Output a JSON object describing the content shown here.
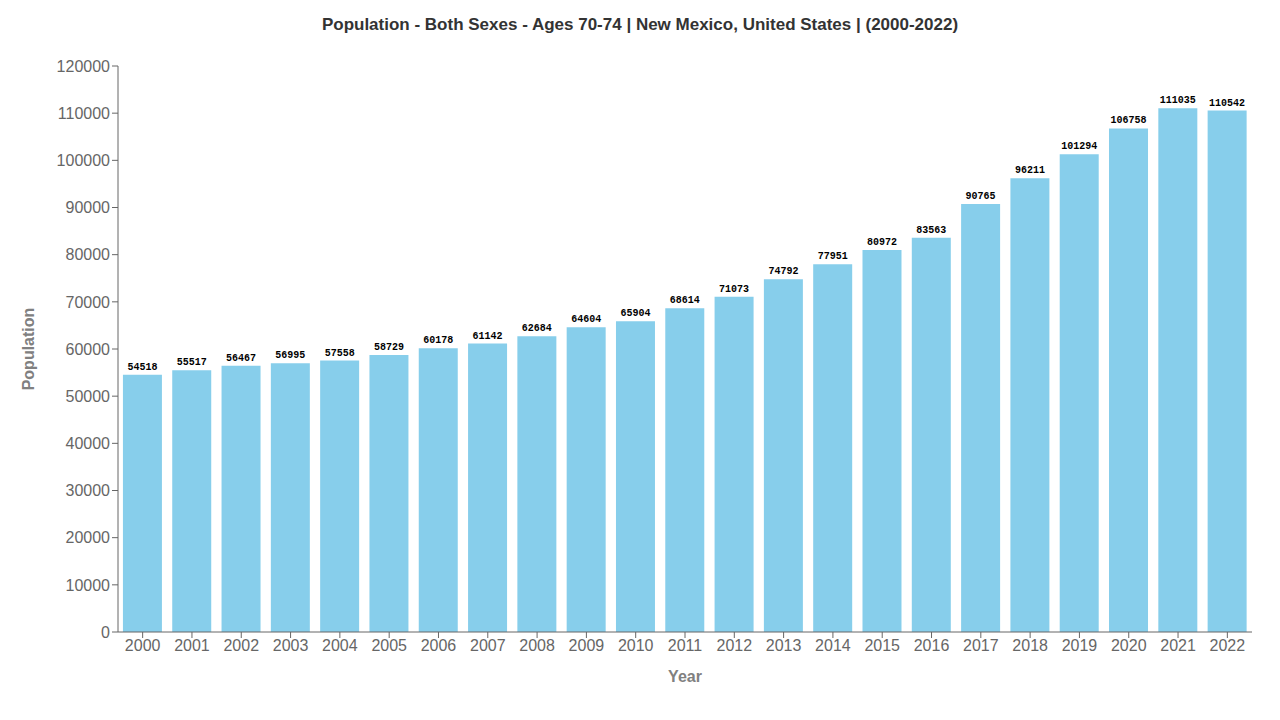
{
  "chart_data": {
    "type": "bar",
    "title": "Population - Both Sexes - Ages 70-74 | New Mexico, United States |  (2000-2022)",
    "xlabel": "Year",
    "ylabel": "Population",
    "categories": [
      "2000",
      "2001",
      "2002",
      "2003",
      "2004",
      "2005",
      "2006",
      "2007",
      "2008",
      "2009",
      "2010",
      "2011",
      "2012",
      "2013",
      "2014",
      "2015",
      "2016",
      "2017",
      "2018",
      "2019",
      "2020",
      "2021",
      "2022"
    ],
    "values": [
      54518,
      55517,
      56467,
      56995,
      57558,
      58729,
      60178,
      61142,
      62684,
      64604,
      65904,
      68614,
      71073,
      74792,
      77951,
      80972,
      83563,
      90765,
      96211,
      101294,
      106758,
      111035,
      110542
    ],
    "color": "#87CEEB",
    "ylim": [
      0,
      120000
    ],
    "yticks": [
      0,
      10000,
      20000,
      30000,
      40000,
      50000,
      60000,
      70000,
      80000,
      90000,
      100000,
      110000,
      120000
    ],
    "grid": false,
    "data_labels": true
  }
}
